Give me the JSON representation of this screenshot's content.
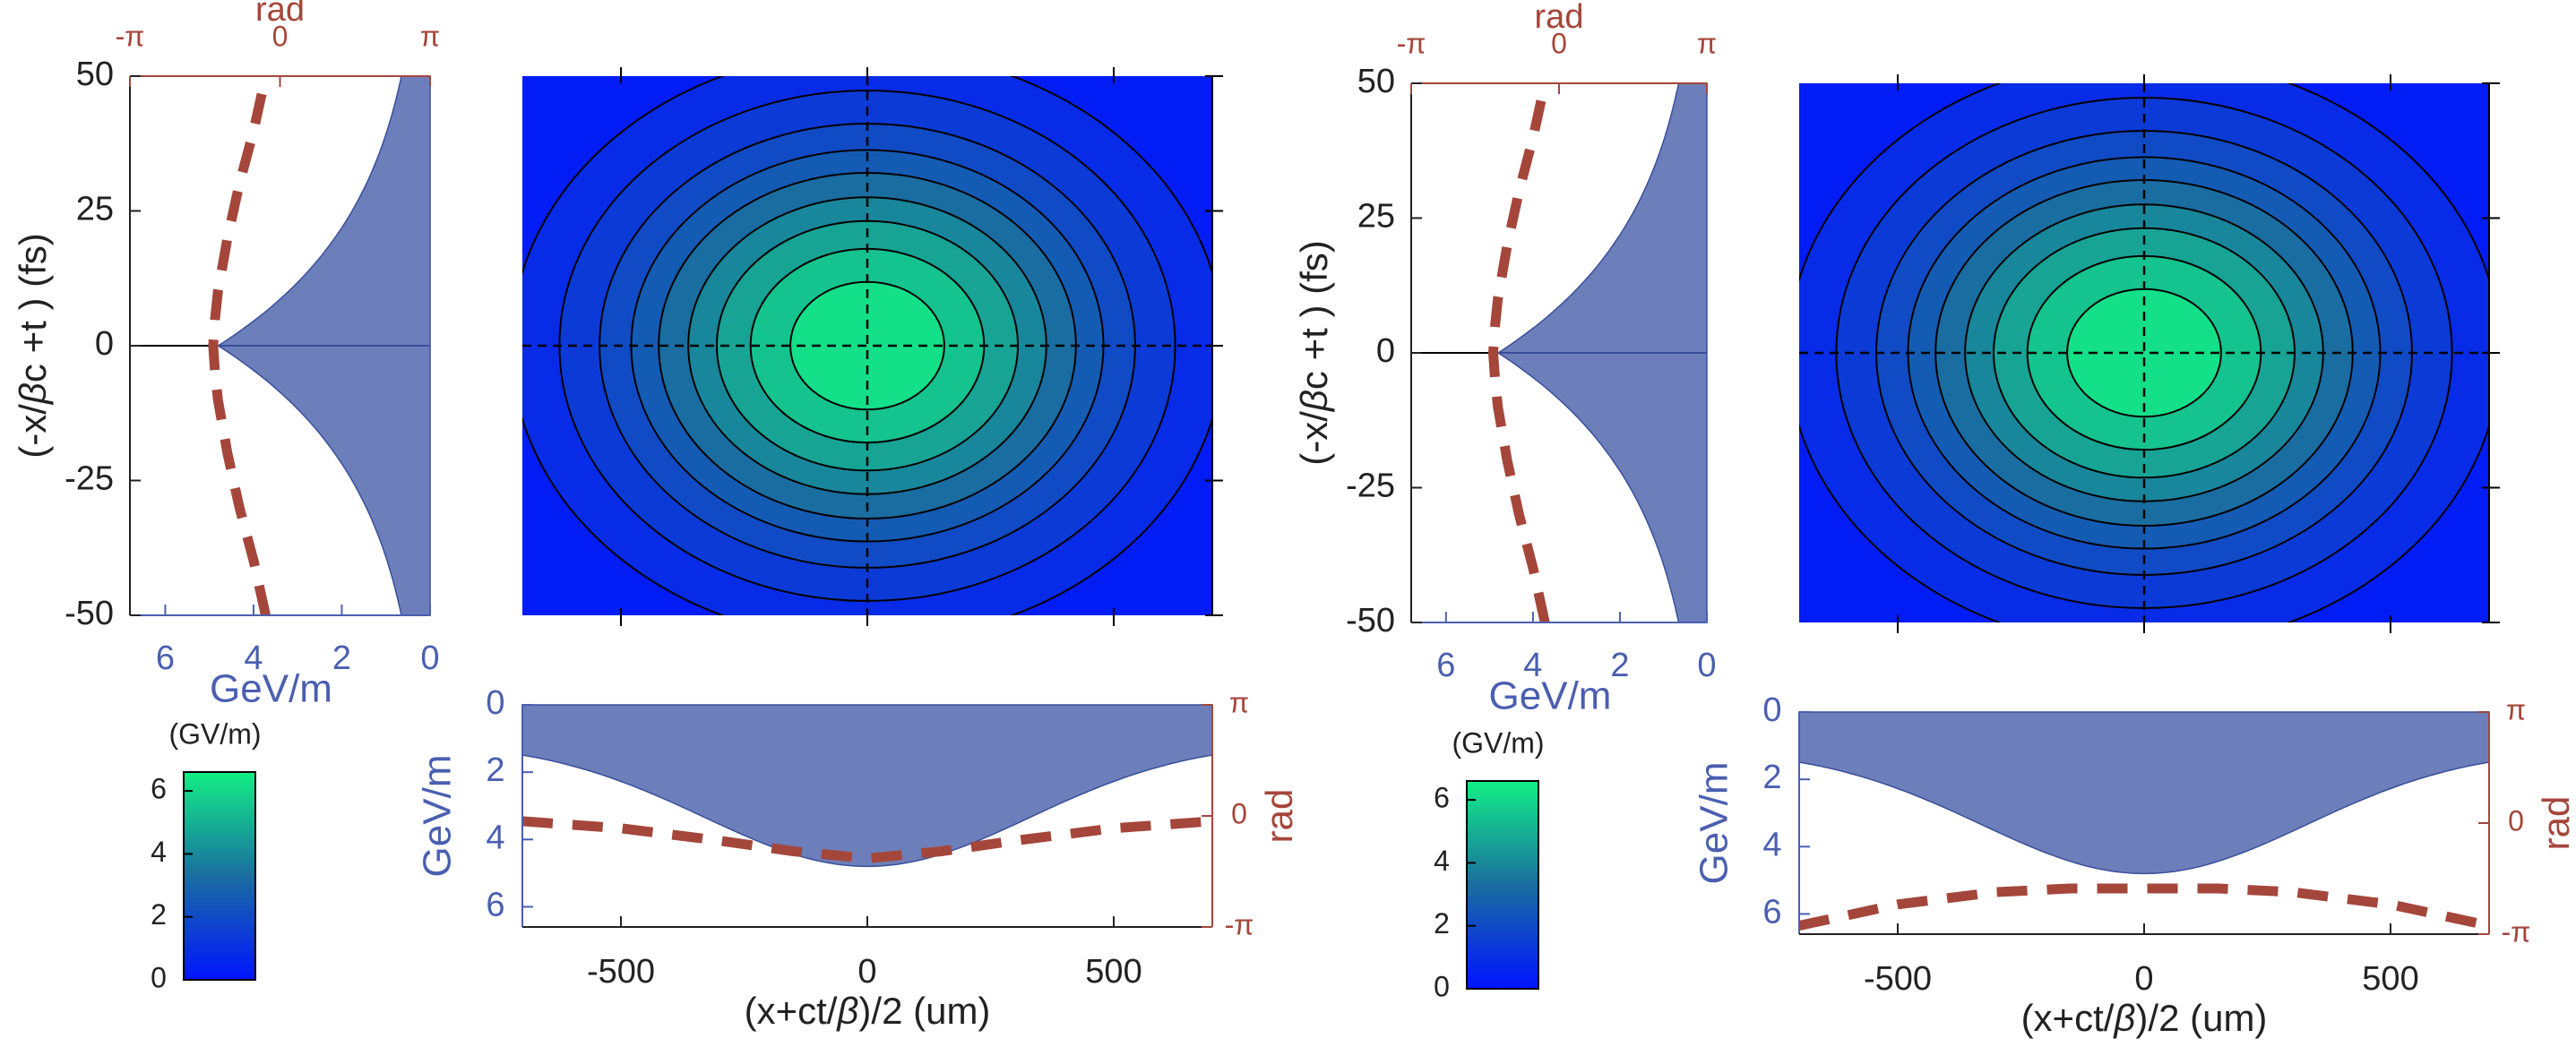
{
  "colors": {
    "field_fill": "#6c7fba",
    "field_stroke": "#3a4f9a",
    "axis_blue": "#4a5fb0",
    "phase_red": "#a5463b",
    "cmap_low": "#0014ff",
    "cmap_mid": "#1a6ea0",
    "cmap_high": "#12ee85",
    "contour_line": "#000000",
    "axis_black": "#222222"
  },
  "chart_data": [
    {
      "name": "left",
      "type": "heatmap",
      "side_panel": {
        "type": "area",
        "title": "",
        "top_axis_label": "rad",
        "top_ticks": [
          "-π",
          "0",
          "π"
        ],
        "top_range": [
          -3.1416,
          3.1416
        ],
        "ylabel_parts": [
          "(-x/",
          "β",
          "c +t ) (fs)"
        ],
        "yticks": [
          50,
          25,
          0,
          -25,
          -50
        ],
        "ylim": [
          -50,
          50
        ],
        "xlabel": "GeV/m",
        "xticks": [
          6,
          4,
          2,
          0
        ],
        "xlim": [
          6.8,
          0
        ],
        "field_peak": 4.8,
        "field_width_fs": 25,
        "field_floor": 0.0,
        "phase_curve": {
          "t": [
            -50,
            -40,
            -30,
            -20,
            -10,
            -5,
            0,
            5,
            10,
            20,
            30,
            40,
            50
          ],
          "rad": [
            -0.3,
            -0.55,
            -0.85,
            -1.1,
            -1.3,
            -1.36,
            -1.4,
            -1.36,
            -1.3,
            -1.1,
            -0.85,
            -0.55,
            -0.3
          ]
        }
      },
      "heatmap": {
        "x_range": [
          -700,
          700
        ],
        "y_range": [
          -50,
          50
        ],
        "x_tick_positions": [
          -500,
          0,
          500
        ],
        "y_tick_positions": [
          50,
          25,
          0,
          -25,
          -50
        ],
        "peak": 6.6,
        "sigma_x": 330,
        "sigma_y": 25,
        "contour_levels": [
          0.6,
          1.1,
          1.7,
          2.3,
          2.9,
          3.6,
          4.3,
          5.1,
          5.9
        ],
        "crosshair": [
          0,
          0
        ]
      },
      "bottom_panel": {
        "type": "area",
        "xlabel_parts": [
          "(x+ct/",
          "β",
          ")/2 (um)"
        ],
        "xticks": [
          -500,
          0,
          500
        ],
        "xlim": [
          -700,
          700
        ],
        "ylabel": "GeV/m",
        "yticks": [
          0,
          2,
          4,
          6
        ],
        "ylim": [
          0,
          6.6
        ],
        "right_label": "rad",
        "right_ticks": [
          "π",
          "0",
          "-π"
        ],
        "field_peak": 4.8,
        "field_floor": 1.1,
        "field_sigma_um": 330,
        "phase_curve": {
          "x": [
            -700,
            -500,
            -300,
            -150,
            0,
            150,
            300,
            500,
            700
          ],
          "rad": [
            -0.15,
            -0.35,
            -0.7,
            -1.0,
            -1.2,
            -1.0,
            -0.7,
            -0.35,
            -0.15
          ]
        }
      },
      "colorbar": {
        "title": "(GV/m)",
        "ticks": [
          6,
          4,
          2,
          0
        ],
        "range": [
          0,
          6.6
        ]
      }
    },
    {
      "name": "right",
      "type": "heatmap",
      "side_panel": {
        "type": "area",
        "title": "",
        "top_axis_label": "rad",
        "top_ticks": [
          "-π",
          "0",
          "π"
        ],
        "top_range": [
          -3.1416,
          3.1416
        ],
        "ylabel_parts": [
          "(-x/",
          "β",
          "c +t ) (fs)"
        ],
        "yticks": [
          50,
          25,
          0,
          -25,
          -50
        ],
        "ylim": [
          -50,
          50
        ],
        "xlabel": "GeV/m",
        "xticks": [
          6,
          4,
          2,
          0
        ],
        "xlim": [
          6.8,
          0
        ],
        "field_peak": 4.8,
        "field_width_fs": 25,
        "field_floor": 0.0,
        "phase_curve": {
          "t": [
            -50,
            -40,
            -30,
            -20,
            -10,
            -5,
            0,
            5,
            10,
            20,
            30,
            40,
            50
          ],
          "rad": [
            -0.3,
            -0.55,
            -0.85,
            -1.1,
            -1.3,
            -1.36,
            -1.4,
            -1.36,
            -1.3,
            -1.1,
            -0.85,
            -0.55,
            -0.3
          ]
        }
      },
      "heatmap": {
        "x_range": [
          -700,
          700
        ],
        "y_range": [
          -50,
          50
        ],
        "x_tick_positions": [
          -500,
          0,
          500
        ],
        "y_tick_positions": [
          50,
          25,
          0,
          -25,
          -50
        ],
        "peak": 6.6,
        "sigma_x": 330,
        "sigma_y": 25,
        "contour_levels": [
          0.6,
          1.1,
          1.7,
          2.3,
          2.9,
          3.6,
          4.3,
          5.1,
          5.9
        ],
        "crosshair": [
          0,
          0
        ]
      },
      "bottom_panel": {
        "type": "area",
        "xlabel_parts": [
          "(x+ct/",
          "β",
          ")/2 (um)"
        ],
        "xticks": [
          -500,
          0,
          500
        ],
        "xlim": [
          -700,
          700
        ],
        "ylabel": "GeV/m",
        "yticks": [
          0,
          2,
          4,
          6
        ],
        "ylim": [
          0,
          6.6
        ],
        "right_label": "rad",
        "right_ticks": [
          "π",
          "0",
          "-π"
        ],
        "field_peak": 4.8,
        "field_floor": 1.1,
        "field_sigma_um": 330,
        "phase_curve": {
          "x": [
            -700,
            -500,
            -300,
            -150,
            0,
            150,
            300,
            500,
            700
          ],
          "rad": [
            -2.9,
            -2.3,
            -1.95,
            -1.85,
            -1.85,
            -1.85,
            -1.95,
            -2.3,
            -2.9
          ]
        }
      },
      "colorbar": {
        "title": "(GV/m)",
        "ticks": [
          6,
          4,
          2,
          0
        ],
        "range": [
          0,
          6.6
        ]
      }
    }
  ]
}
